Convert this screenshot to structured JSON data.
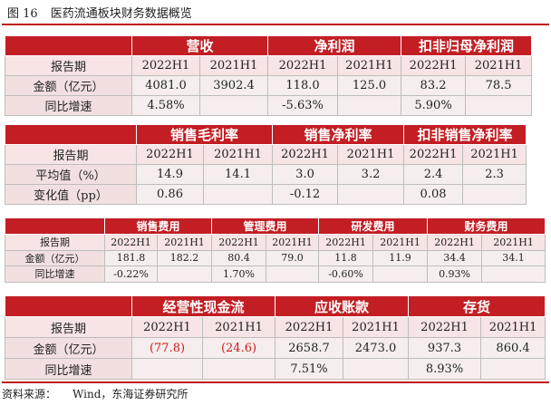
{
  "figure": {
    "number": "图 16",
    "title": "医药流通板块财务数据概览"
  },
  "source": {
    "label": "资料来源：",
    "value": "Wind，东海证券研究所"
  },
  "colors": {
    "header_bg": "#c21e24",
    "cell_bg": "#f6eeee",
    "negative_text": "#d11a1a",
    "rule": "#c01a1a"
  },
  "table1": {
    "groups": [
      "营收",
      "净利润",
      "扣非归母净利润"
    ],
    "period_label": "报告期",
    "periods": [
      "2022H1",
      "2021H1",
      "2022H1",
      "2021H1",
      "2022H1",
      "2021H1"
    ],
    "rows": [
      {
        "label": "金额（亿元）",
        "values": [
          "4081.0",
          "3902.4",
          "118.0",
          "125.0",
          "83.2",
          "78.5"
        ]
      },
      {
        "label": "同比增速",
        "values": [
          "4.58%",
          "",
          "-5.63%",
          "",
          "5.90%",
          ""
        ]
      }
    ]
  },
  "table2": {
    "groups": [
      "销售毛利率",
      "销售净利率",
      "扣非销售净利率"
    ],
    "period_label": "报告期",
    "periods": [
      "2022H1",
      "2021H1",
      "2022H1",
      "2021H1",
      "2022H1",
      "2021H1"
    ],
    "rows": [
      {
        "label": "平均值（%）",
        "values": [
          "14.9",
          "14.1",
          "3.0",
          "3.2",
          "2.4",
          "2.3"
        ]
      },
      {
        "label": "变化值（pp）",
        "values": [
          "0.86",
          "",
          "-0.12",
          "",
          "0.08",
          ""
        ]
      }
    ]
  },
  "table3": {
    "groups": [
      "销售费用",
      "管理费用",
      "研发费用",
      "财务费用"
    ],
    "period_label": "报告期",
    "periods": [
      "2022H1",
      "2021H1",
      "2022H1",
      "2021H1",
      "2022H1",
      "2021H1",
      "2022H1",
      "2021H1"
    ],
    "rows": [
      {
        "label": "金额（亿元）",
        "values": [
          "181.8",
          "182.2",
          "80.4",
          "79.0",
          "11.8",
          "11.9",
          "34.4",
          "34.1"
        ]
      },
      {
        "label": "同比增速",
        "values": [
          "-0.22%",
          "",
          "1.70%",
          "",
          "-0.60%",
          "",
          "0.93%",
          ""
        ]
      }
    ]
  },
  "table4": {
    "groups": [
      "经营性现金流",
      "应收账款",
      "存货"
    ],
    "period_label": "报告期",
    "periods": [
      "2022H1",
      "2021H1",
      "2022H1",
      "2021H1",
      "2022H1",
      "2021H1"
    ],
    "rows": [
      {
        "label": "金额（亿元）",
        "values": [
          "(77.8)",
          "(24.6)",
          "2658.7",
          "2473.0",
          "937.3",
          "860.4"
        ]
      },
      {
        "label": "同比增速",
        "values": [
          "",
          "",
          "7.51%",
          "",
          "8.93%",
          ""
        ]
      }
    ]
  }
}
